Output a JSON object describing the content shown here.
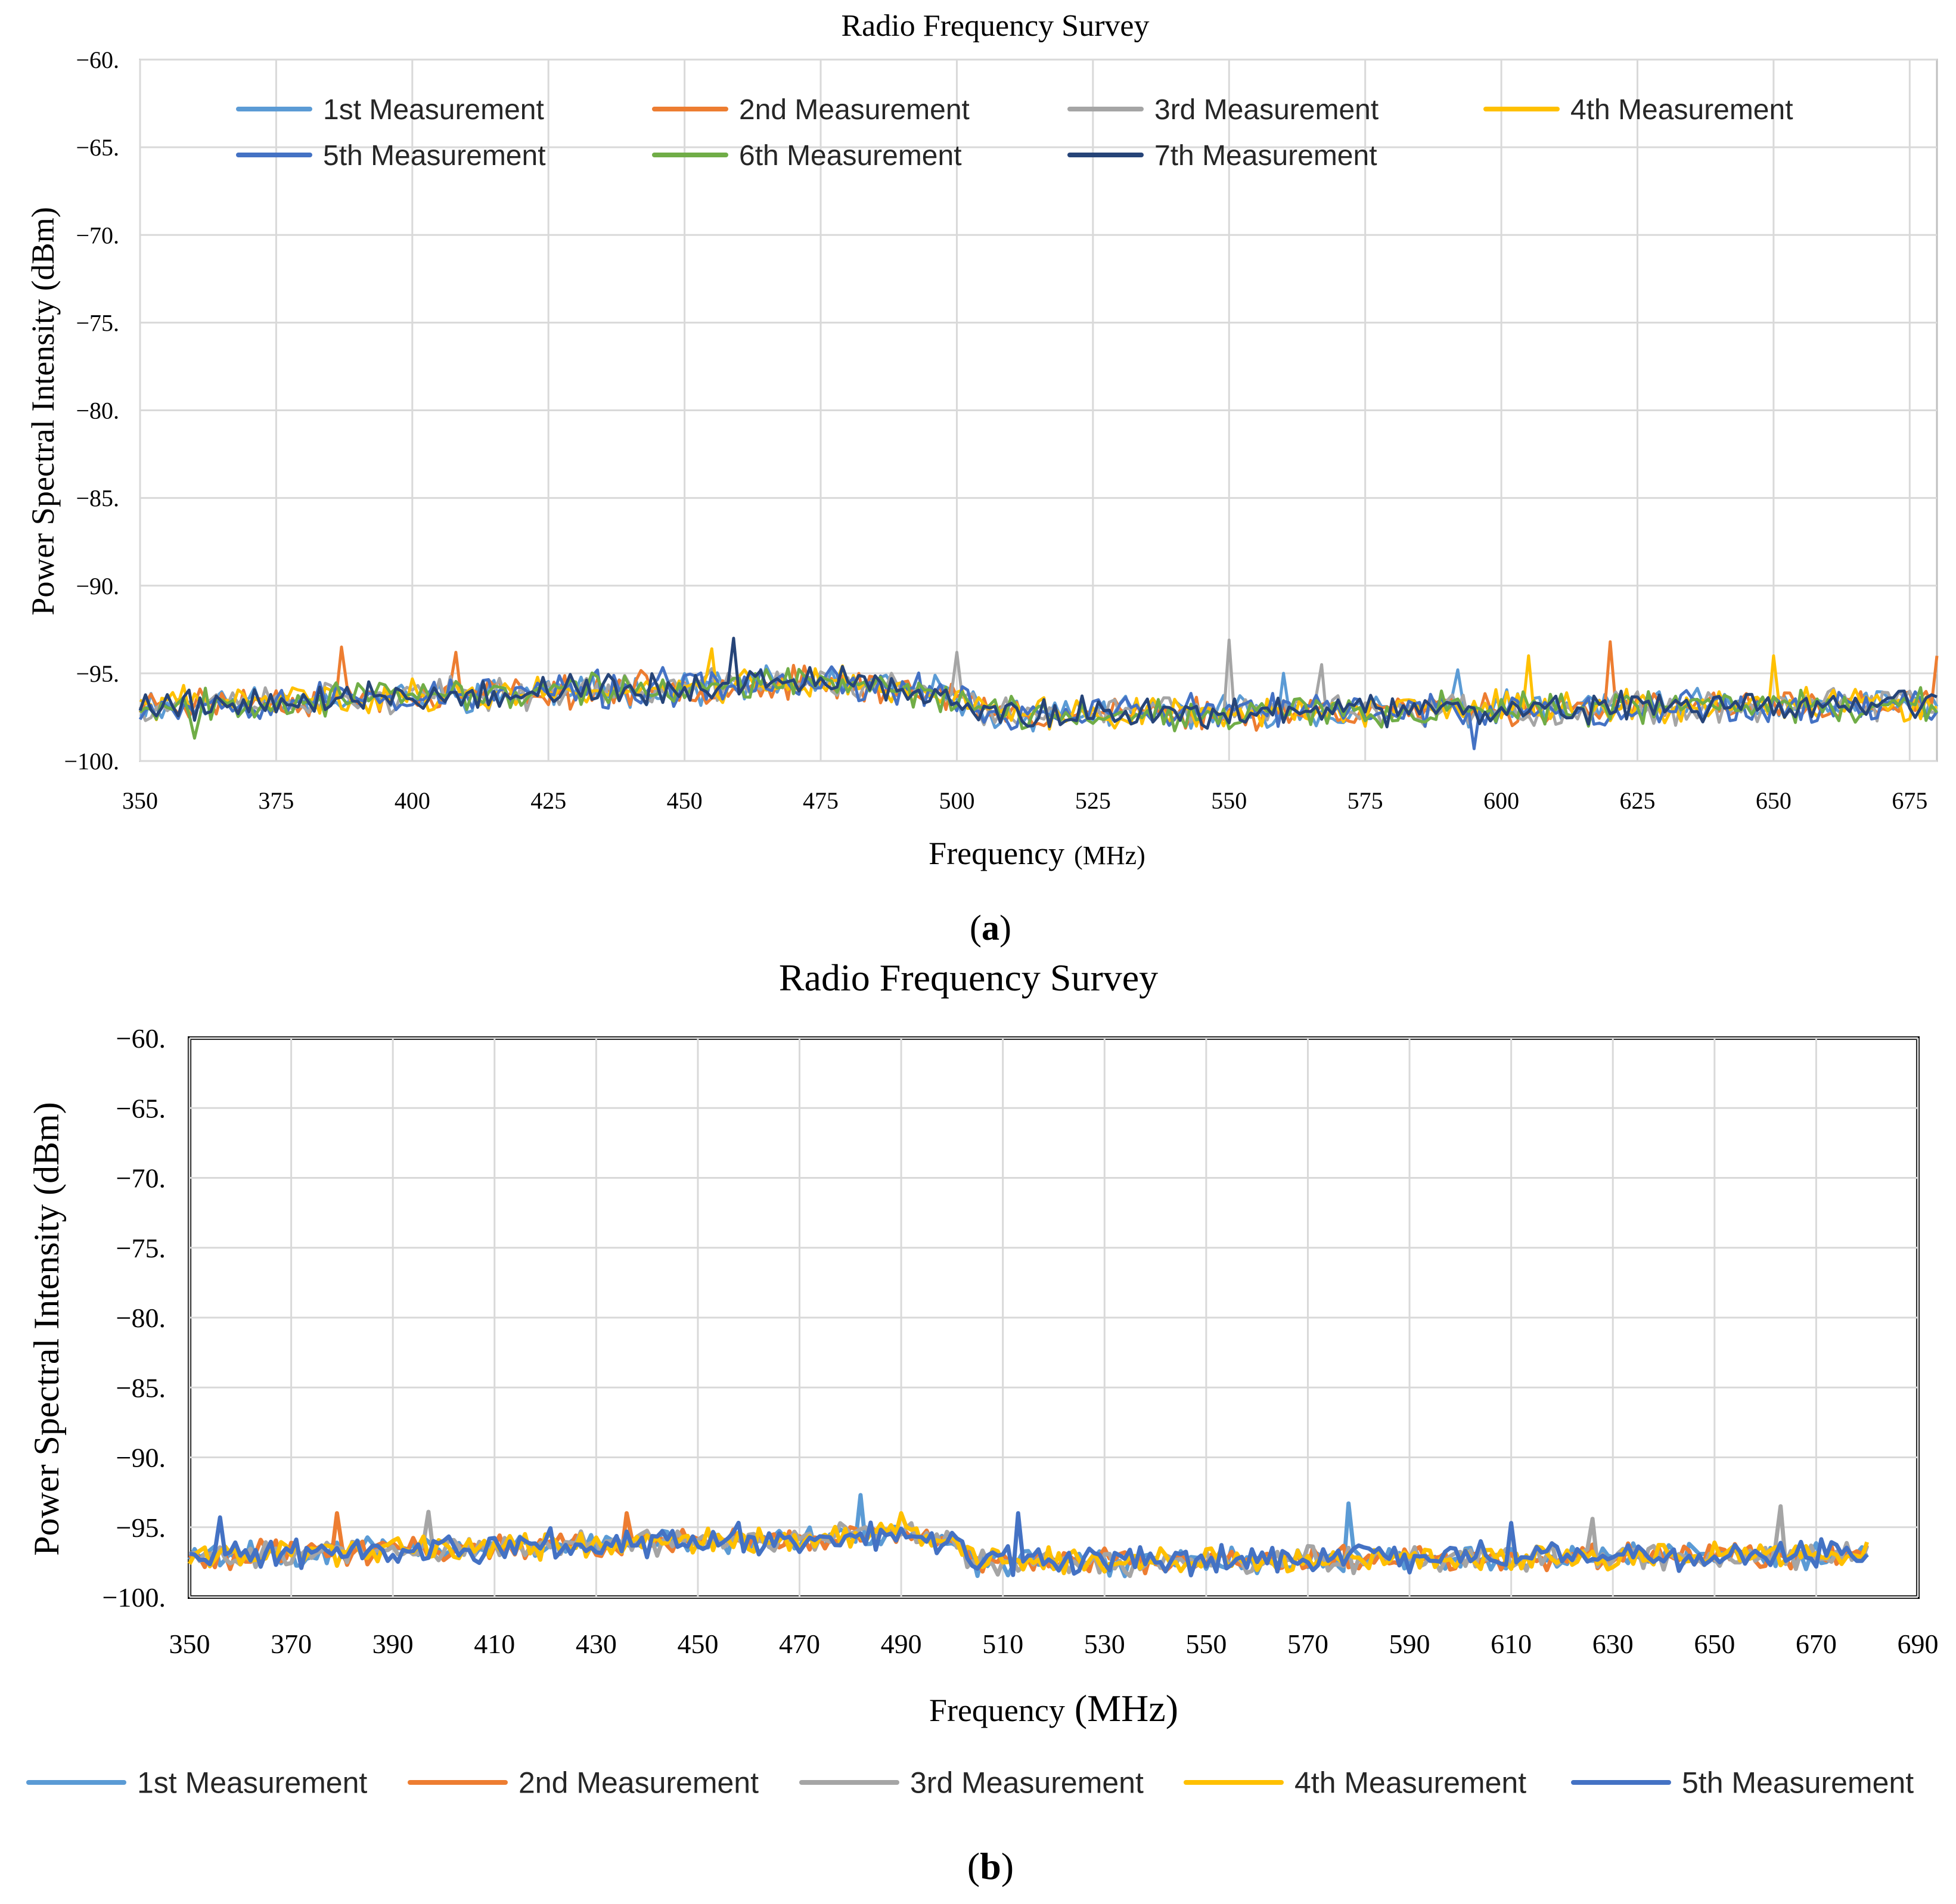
{
  "chart_data": [
    {
      "type": "line",
      "panel_label": "a",
      "title": "Radio Frequency Survey",
      "xlabel": "Frequency",
      "xlabel_unit": "(MHz)",
      "ylabel": "Power Spectral Intensity (dBm)",
      "xlim": [
        350,
        680
      ],
      "ylim": [
        -100,
        -60
      ],
      "x_ticks": [
        "350",
        "375",
        "400",
        "425",
        "450",
        "475",
        "500",
        "525",
        "550",
        "575",
        "600",
        "625",
        "650",
        "675"
      ],
      "y_ticks": [
        "−60.",
        "−65.",
        "−70.",
        "−75.",
        "−80.",
        "−85.",
        "−90.",
        "−95.",
        "−100."
      ],
      "grid": true,
      "legend_position": "top",
      "x_step_mhz": 1,
      "profile": {
        "x": [
          350,
          400,
          450,
          475,
          500,
          505,
          550,
          600,
          680
        ],
        "y": [
          -96.8,
          -96.3,
          -95.8,
          -95.5,
          -96.2,
          -97.3,
          -97.2,
          -97.0,
          -96.8
        ]
      },
      "series": [
        {
          "name": "1st Measurement",
          "color": "#5b9bd5",
          "noise_db": 0.8,
          "seed": 11,
          "spikes": [
            {
              "x": 560,
              "y": -95.0
            },
            {
              "x": 592,
              "y": -94.8
            }
          ]
        },
        {
          "name": "2nd Measurement",
          "color": "#ed7d31",
          "noise_db": 0.8,
          "seed": 23,
          "spikes": [
            {
              "x": 387,
              "y": -93.5
            },
            {
              "x": 408,
              "y": -93.8
            },
            {
              "x": 620,
              "y": -93.2
            },
            {
              "x": 680,
              "y": -94.0
            }
          ]
        },
        {
          "name": "3rd Measurement",
          "color": "#a5a5a5",
          "noise_db": 0.8,
          "seed": 37,
          "spikes": [
            {
              "x": 500,
              "y": -93.8
            },
            {
              "x": 550,
              "y": -93.1
            },
            {
              "x": 567,
              "y": -94.5
            }
          ]
        },
        {
          "name": "4th Measurement",
          "color": "#ffc000",
          "noise_db": 0.8,
          "seed": 41,
          "spikes": [
            {
              "x": 455,
              "y": -93.6
            },
            {
              "x": 605,
              "y": -94.0
            },
            {
              "x": 650,
              "y": -94.0
            }
          ]
        },
        {
          "name": "5th Measurement",
          "color": "#4472c4",
          "noise_db": 0.9,
          "seed": 53,
          "spikes": [
            {
              "x": 595,
              "y": -99.3
            }
          ]
        },
        {
          "name": "6th Measurement",
          "color": "#70ad47",
          "noise_db": 0.8,
          "seed": 67,
          "spikes": [
            {
              "x": 360,
              "y": -98.7
            }
          ]
        },
        {
          "name": "7th Measurement",
          "color": "#264478",
          "noise_db": 0.8,
          "seed": 79,
          "spikes": [
            {
              "x": 459,
              "y": -93.0
            }
          ]
        }
      ]
    },
    {
      "type": "line",
      "panel_label": "b",
      "title": "Radio Frequency Survey",
      "xlabel": "Frequency",
      "xlabel_unit": "(MHz)",
      "ylabel": "Power Spectral Intensity (dBm)",
      "xlim": [
        350,
        690
      ],
      "ylim": [
        -100,
        -60
      ],
      "x_ticks": [
        "350",
        "370",
        "390",
        "410",
        "430",
        "450",
        "470",
        "490",
        "510",
        "530",
        "550",
        "570",
        "590",
        "610",
        "630",
        "650",
        "670",
        "690"
      ],
      "y_ticks": [
        "−60.",
        "−65.",
        "−70.",
        "−75.",
        "−80.",
        "−85.",
        "−90.",
        "−95.",
        "−100."
      ],
      "grid": true,
      "legend_position": "bottom",
      "x_step_mhz": 1,
      "data_x_range": [
        350,
        680
      ],
      "profile": {
        "x": [
          350,
          400,
          450,
          470,
          490,
          500,
          505,
          550,
          600,
          680
        ],
        "y": [
          -97.0,
          -96.5,
          -96.0,
          -95.8,
          -95.5,
          -96.0,
          -97.5,
          -97.4,
          -97.2,
          -97.0
        ]
      },
      "series": [
        {
          "name": "1st Measurement",
          "color": "#5b9bd5",
          "noise_db": 0.8,
          "seed": 101,
          "spikes": [
            {
              "x": 482,
              "y": -92.7
            },
            {
              "x": 578,
              "y": -93.3
            }
          ]
        },
        {
          "name": "2nd Measurement",
          "color": "#ed7d31",
          "noise_db": 0.8,
          "seed": 113,
          "spikes": [
            {
              "x": 379,
              "y": -94.0
            },
            {
              "x": 436,
              "y": -94.0
            }
          ]
        },
        {
          "name": "3rd Measurement",
          "color": "#a5a5a5",
          "noise_db": 0.8,
          "seed": 127,
          "spikes": [
            {
              "x": 397,
              "y": -93.9
            },
            {
              "x": 626,
              "y": -94.4
            },
            {
              "x": 663,
              "y": -93.5
            }
          ]
        },
        {
          "name": "4th Measurement",
          "color": "#ffc000",
          "noise_db": 0.8,
          "seed": 131,
          "spikes": [
            {
              "x": 490,
              "y": -94.0
            }
          ]
        },
        {
          "name": "5th Measurement",
          "color": "#4472c4",
          "noise_db": 0.9,
          "seed": 149,
          "spikes": [
            {
              "x": 356,
              "y": -94.3
            },
            {
              "x": 513,
              "y": -94.0
            },
            {
              "x": 610,
              "y": -94.7
            }
          ]
        }
      ]
    }
  ]
}
